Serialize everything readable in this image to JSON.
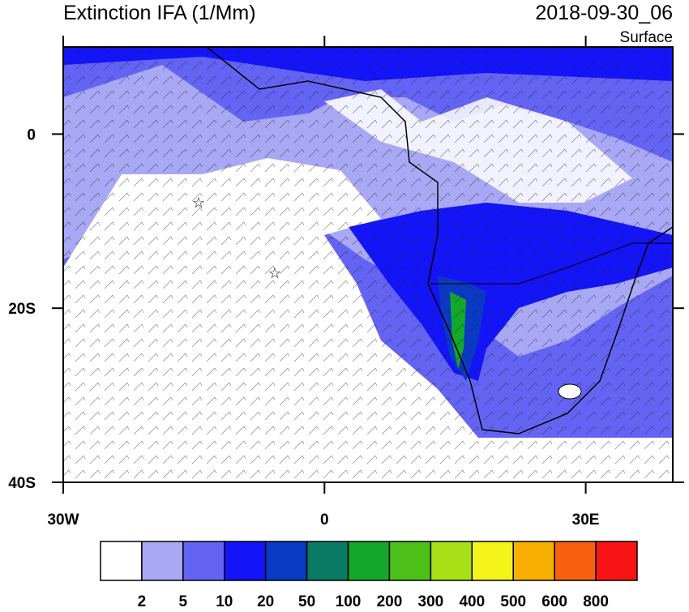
{
  "header": {
    "title": "Extinction IFA (1/Mm)",
    "time": "2018-09-30_06",
    "level": "Surface"
  },
  "map": {
    "xlim": [
      -30,
      40
    ],
    "ylim": [
      -40,
      10
    ],
    "lon_ticks": [
      {
        "value": -30,
        "label": "30W"
      },
      0,
      {
        "value": 30,
        "label": "30E"
      }
    ],
    "lat_ticks": [
      0,
      {
        "value": -20,
        "label": "20S"
      },
      {
        "value": -40,
        "label": "40S"
      }
    ]
  },
  "colorbar": {
    "colors": [
      "#ffffff",
      "#a8a8f4",
      "#6464f4",
      "#1414f8",
      "#0a3ac4",
      "#0a7a64",
      "#14a82a",
      "#4cc018",
      "#a8e018",
      "#f4f41a",
      "#f8b000",
      "#f86010",
      "#f81414"
    ],
    "levels": [
      2,
      5,
      10,
      20,
      50,
      100,
      200,
      300,
      400,
      500,
      600,
      800
    ]
  }
}
